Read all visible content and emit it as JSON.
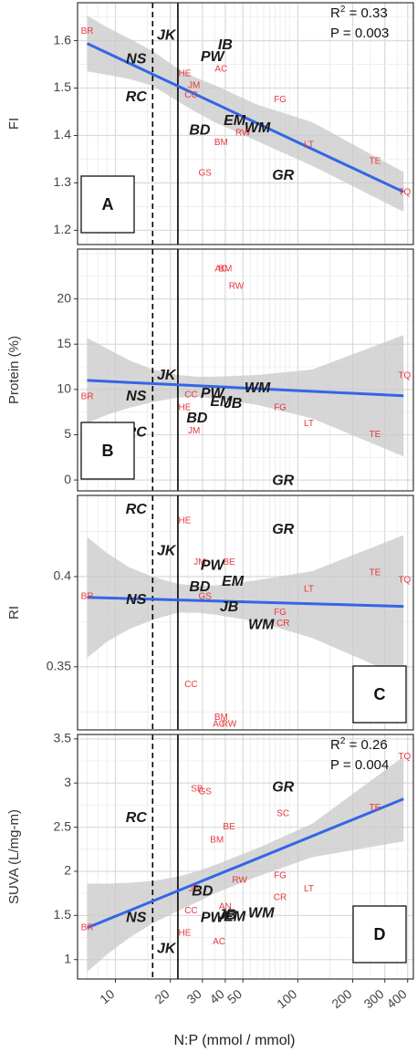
{
  "figure": {
    "xlabel": "N:P (mmol / mmol)",
    "x_scale": "log",
    "x_ticks": [
      10,
      20,
      30,
      40,
      50,
      100,
      200,
      300,
      400
    ],
    "vlines": [
      {
        "x": 16,
        "style": "dashed"
      },
      {
        "x": 22,
        "style": "solid"
      }
    ]
  },
  "colors": {
    "fit_line": "#3366e6",
    "ci_band": "#c8c8c8",
    "site_small": "#e8383d",
    "site_big": "#1a1a1a"
  },
  "chart_data": [
    {
      "type": "scatter",
      "panel": "A",
      "ylabel": "FI",
      "ylim": [
        1.17,
        1.68
      ],
      "y_ticks": [
        1.2,
        1.3,
        1.4,
        1.5,
        1.6
      ],
      "grid": true,
      "stats": {
        "r2_prefix": "R",
        "r2_sup": "2",
        "r2_value": " = 0.33",
        "p": "P = 0.003"
      },
      "fit": {
        "x": [
          7,
          380
        ],
        "y": [
          1.594,
          1.281
        ],
        "ci_lower": [
          1.535,
          1.528,
          1.519,
          1.505,
          1.472,
          1.448,
          1.428,
          1.388,
          1.336,
          1.239
        ],
        "ci_upper": [
          1.653,
          1.628,
          1.604,
          1.578,
          1.541,
          1.521,
          1.506,
          1.465,
          1.428,
          1.323
        ],
        "ci_x": [
          7,
          9,
          12,
          16,
          22,
          28,
          35,
          60,
          120,
          380
        ]
      },
      "points": [
        {
          "label": "BR",
          "x": 7,
          "y": 1.62,
          "style": "small"
        },
        {
          "label": "JK",
          "x": 19,
          "y": 1.61,
          "style": "big"
        },
        {
          "label": "NS",
          "x": 13,
          "y": 1.56,
          "style": "big"
        },
        {
          "label": "IB",
          "x": 40,
          "y": 1.59,
          "style": "big"
        },
        {
          "label": "PW",
          "x": 34,
          "y": 1.565,
          "style": "big"
        },
        {
          "label": "AC",
          "x": 38,
          "y": 1.54,
          "style": "small"
        },
        {
          "label": "HE",
          "x": 24,
          "y": 1.53,
          "style": "small"
        },
        {
          "label": "JM",
          "x": 27,
          "y": 1.505,
          "style": "small"
        },
        {
          "label": "RC",
          "x": 13,
          "y": 1.48,
          "style": "big"
        },
        {
          "label": "CC",
          "x": 26,
          "y": 1.485,
          "style": "small"
        },
        {
          "label": "FG",
          "x": 80,
          "y": 1.475,
          "style": "small"
        },
        {
          "label": "EM",
          "x": 45,
          "y": 1.43,
          "style": "big"
        },
        {
          "label": "BD",
          "x": 29,
          "y": 1.41,
          "style": "big"
        },
        {
          "label": "WM",
          "x": 60,
          "y": 1.415,
          "style": "big"
        },
        {
          "label": "RW",
          "x": 50,
          "y": 1.405,
          "style": "small"
        },
        {
          "label": "BM",
          "x": 38,
          "y": 1.385,
          "style": "small"
        },
        {
          "label": "LT",
          "x": 115,
          "y": 1.38,
          "style": "small"
        },
        {
          "label": "TE",
          "x": 265,
          "y": 1.345,
          "style": "small"
        },
        {
          "label": "GS",
          "x": 31,
          "y": 1.32,
          "style": "small"
        },
        {
          "label": "GR",
          "x": 83,
          "y": 1.315,
          "style": "big"
        },
        {
          "label": "TQ",
          "x": 385,
          "y": 1.28,
          "style": "small"
        }
      ]
    },
    {
      "type": "scatter",
      "panel": "B",
      "ylabel": "Protein (%)",
      "ylim": [
        -1.2,
        25.5
      ],
      "y_ticks": [
        0,
        5,
        10,
        15,
        20
      ],
      "grid": true,
      "fit": {
        "x": [
          7,
          380
        ],
        "y": [
          11.0,
          9.3
        ],
        "ci_x": [
          7,
          9,
          12,
          16,
          22,
          28,
          35,
          60,
          120,
          380
        ],
        "ci_lower": [
          6.3,
          7.2,
          8.0,
          8.6,
          9.1,
          9.2,
          9.0,
          8.3,
          6.8,
          2.6
        ],
        "ci_upper": [
          15.7,
          14.5,
          13.2,
          12.2,
          11.6,
          11.4,
          11.4,
          11.6,
          12.2,
          16.0
        ]
      },
      "points": [
        {
          "label": "AC",
          "x": 38,
          "y": 23.3,
          "style": "small"
        },
        {
          "label": "BM",
          "x": 40,
          "y": 23.3,
          "style": "small"
        },
        {
          "label": "RW",
          "x": 46,
          "y": 21.4,
          "style": "small"
        },
        {
          "label": "JK",
          "x": 19,
          "y": 11.5,
          "style": "big"
        },
        {
          "label": "TQ",
          "x": 385,
          "y": 11.5,
          "style": "small"
        },
        {
          "label": "WM",
          "x": 60,
          "y": 10.1,
          "style": "big"
        },
        {
          "label": "PW",
          "x": 34,
          "y": 9.5,
          "style": "big"
        },
        {
          "label": "NS",
          "x": 13,
          "y": 9.2,
          "style": "big"
        },
        {
          "label": "BR",
          "x": 7,
          "y": 9.2,
          "style": "small"
        },
        {
          "label": "CC",
          "x": 26,
          "y": 9.4,
          "style": "small"
        },
        {
          "label": "EM",
          "x": 38,
          "y": 8.6,
          "style": "big"
        },
        {
          "label": "JB",
          "x": 44,
          "y": 8.4,
          "style": "big"
        },
        {
          "label": "HE",
          "x": 24,
          "y": 8.0,
          "style": "small"
        },
        {
          "label": "FG",
          "x": 80,
          "y": 8.0,
          "style": "small"
        },
        {
          "label": "BD",
          "x": 28,
          "y": 6.8,
          "style": "big"
        },
        {
          "label": "JM",
          "x": 27,
          "y": 5.4,
          "style": "small"
        },
        {
          "label": "RC",
          "x": 13,
          "y": 5.2,
          "style": "big"
        },
        {
          "label": "LT",
          "x": 115,
          "y": 6.2,
          "style": "small"
        },
        {
          "label": "TE",
          "x": 265,
          "y": 5.0,
          "style": "small"
        },
        {
          "label": "GR",
          "x": 83,
          "y": -0.1,
          "style": "big"
        }
      ]
    },
    {
      "type": "scatter",
      "panel": "C",
      "ylabel": "RI",
      "ylim": [
        0.315,
        0.445
      ],
      "y_ticks": [
        0.35,
        0.4
      ],
      "grid": true,
      "fit": {
        "x": [
          7,
          380
        ],
        "y": [
          0.3885,
          0.3835
        ],
        "ci_x": [
          7,
          9,
          12,
          16,
          22,
          28,
          35,
          60,
          120,
          380
        ],
        "ci_lower": [
          0.355,
          0.364,
          0.371,
          0.376,
          0.38,
          0.38,
          0.379,
          0.375,
          0.366,
          0.344
        ],
        "ci_upper": [
          0.422,
          0.413,
          0.405,
          0.4,
          0.396,
          0.395,
          0.395,
          0.398,
          0.403,
          0.423
        ]
      },
      "points": [
        {
          "label": "RC",
          "x": 13,
          "y": 0.437,
          "style": "big"
        },
        {
          "label": "HE",
          "x": 24,
          "y": 0.431,
          "style": "small"
        },
        {
          "label": "GR",
          "x": 83,
          "y": 0.426,
          "style": "big"
        },
        {
          "label": "JK",
          "x": 19,
          "y": 0.414,
          "style": "big"
        },
        {
          "label": "JM",
          "x": 29,
          "y": 0.408,
          "style": "small"
        },
        {
          "label": "BE",
          "x": 42,
          "y": 0.408,
          "style": "small"
        },
        {
          "label": "PW",
          "x": 34,
          "y": 0.406,
          "style": "big"
        },
        {
          "label": "TE",
          "x": 265,
          "y": 0.402,
          "style": "small"
        },
        {
          "label": "TQ",
          "x": 385,
          "y": 0.398,
          "style": "small"
        },
        {
          "label": "EM",
          "x": 44,
          "y": 0.397,
          "style": "big"
        },
        {
          "label": "BD",
          "x": 29,
          "y": 0.394,
          "style": "big"
        },
        {
          "label": "LT",
          "x": 115,
          "y": 0.393,
          "style": "small"
        },
        {
          "label": "GS",
          "x": 31,
          "y": 0.389,
          "style": "small"
        },
        {
          "label": "BR",
          "x": 7,
          "y": 0.389,
          "style": "small"
        },
        {
          "label": "NS",
          "x": 13,
          "y": 0.387,
          "style": "big"
        },
        {
          "label": "JB",
          "x": 42,
          "y": 0.383,
          "style": "big"
        },
        {
          "label": "FG",
          "x": 80,
          "y": 0.38,
          "style": "small"
        },
        {
          "label": "WM",
          "x": 63,
          "y": 0.373,
          "style": "big"
        },
        {
          "label": "CR",
          "x": 83,
          "y": 0.374,
          "style": "small"
        },
        {
          "label": "CC",
          "x": 26,
          "y": 0.34,
          "style": "small"
        },
        {
          "label": "BM",
          "x": 38,
          "y": 0.322,
          "style": "small"
        },
        {
          "label": "AC",
          "x": 37,
          "y": 0.318,
          "style": "small"
        },
        {
          "label": "RW",
          "x": 42,
          "y": 0.318,
          "style": "small"
        }
      ]
    },
    {
      "type": "scatter",
      "panel": "D",
      "ylabel": "SUVA (L/mg-m)",
      "ylim": [
        0.78,
        3.55
      ],
      "y_ticks": [
        1.0,
        1.5,
        2.0,
        2.5,
        3.0,
        3.5
      ],
      "grid": true,
      "stats": {
        "r2_prefix": "R",
        "r2_sup": "2",
        "r2_value": " = 0.26",
        "p": "P = 0.004"
      },
      "fit": {
        "x": [
          7,
          380
        ],
        "y": [
          1.36,
          2.82
        ],
        "ci_x": [
          7,
          9,
          12,
          16,
          22,
          28,
          35,
          60,
          120,
          380
        ],
        "ci_lower": [
          0.86,
          1.06,
          1.25,
          1.41,
          1.55,
          1.65,
          1.75,
          1.94,
          2.16,
          2.34
        ],
        "ci_upper": [
          1.86,
          1.86,
          1.87,
          1.89,
          1.94,
          2.0,
          2.07,
          2.26,
          2.54,
          3.3
        ]
      },
      "points": [
        {
          "label": "TQ",
          "x": 385,
          "y": 3.3,
          "style": "small"
        },
        {
          "label": "SB",
          "x": 28,
          "y": 2.93,
          "style": "small"
        },
        {
          "label": "GS",
          "x": 31,
          "y": 2.9,
          "style": "small"
        },
        {
          "label": "GR",
          "x": 83,
          "y": 2.95,
          "style": "big"
        },
        {
          "label": "TE",
          "x": 265,
          "y": 2.72,
          "style": "small"
        },
        {
          "label": "SC",
          "x": 83,
          "y": 2.65,
          "style": "small"
        },
        {
          "label": "RC",
          "x": 13,
          "y": 2.6,
          "style": "big"
        },
        {
          "label": "BE",
          "x": 42,
          "y": 2.5,
          "style": "small"
        },
        {
          "label": "BM",
          "x": 36,
          "y": 2.35,
          "style": "small"
        },
        {
          "label": "FG",
          "x": 80,
          "y": 1.95,
          "style": "small"
        },
        {
          "label": "JB",
          "x": 27,
          "y": 1.8,
          "style": "small"
        },
        {
          "label": "BD",
          "x": 30,
          "y": 1.77,
          "style": "big"
        },
        {
          "label": "RW",
          "x": 48,
          "y": 1.9,
          "style": "small"
        },
        {
          "label": "LT",
          "x": 115,
          "y": 1.8,
          "style": "small"
        },
        {
          "label": "CR",
          "x": 80,
          "y": 1.7,
          "style": "small"
        },
        {
          "label": "CC",
          "x": 26,
          "y": 1.55,
          "style": "small"
        },
        {
          "label": "AN",
          "x": 40,
          "y": 1.6,
          "style": "small"
        },
        {
          "label": "WM",
          "x": 63,
          "y": 1.52,
          "style": "big"
        },
        {
          "label": "NS",
          "x": 13,
          "y": 1.47,
          "style": "big"
        },
        {
          "label": "PW",
          "x": 34,
          "y": 1.47,
          "style": "big"
        },
        {
          "label": "JB",
          "x": 41,
          "y": 1.5,
          "style": "big"
        },
        {
          "label": "EM",
          "x": 45,
          "y": 1.48,
          "style": "big"
        },
        {
          "label": "BR",
          "x": 7,
          "y": 1.36,
          "style": "small"
        },
        {
          "label": "HE",
          "x": 24,
          "y": 1.3,
          "style": "small"
        },
        {
          "label": "AC",
          "x": 37,
          "y": 1.2,
          "style": "small"
        },
        {
          "label": "JK",
          "x": 19,
          "y": 1.12,
          "style": "big"
        }
      ]
    }
  ]
}
